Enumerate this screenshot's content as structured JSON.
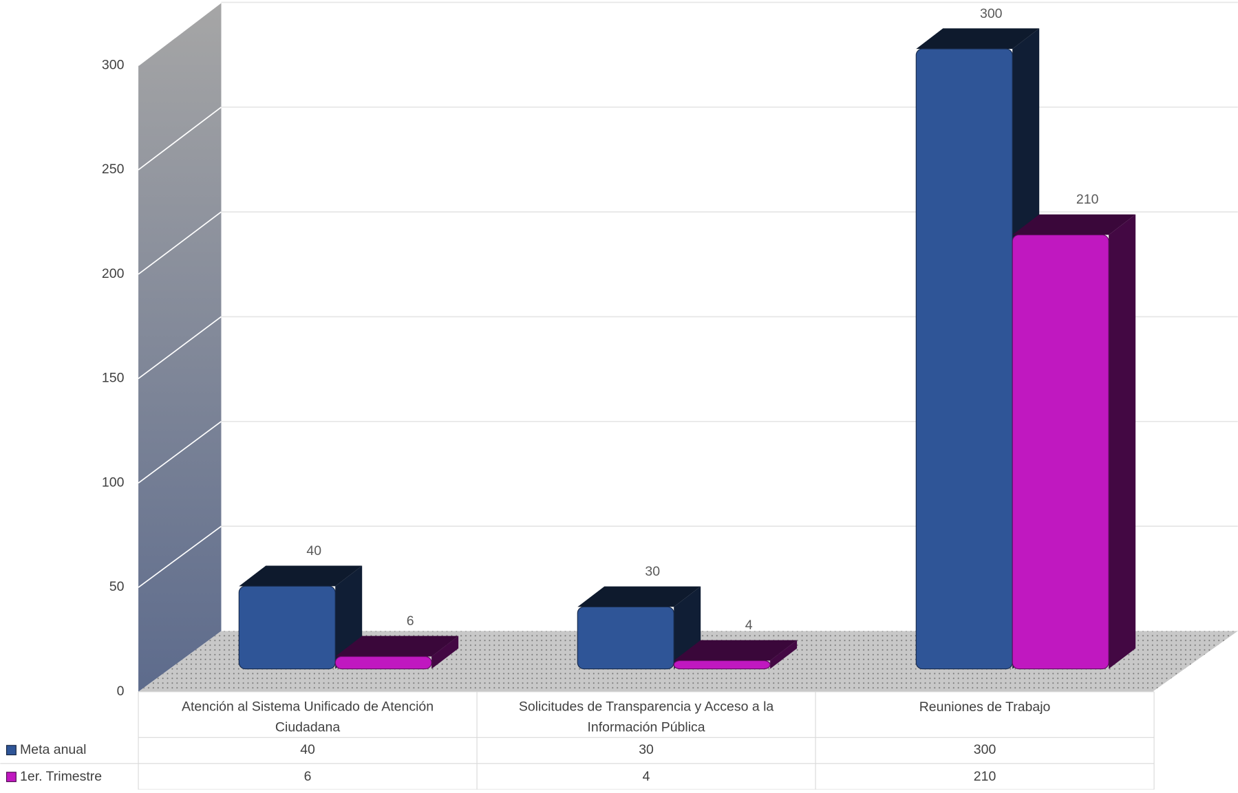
{
  "chart_data": {
    "type": "bar3d",
    "categories": [
      "Atención al Sistema Unificado de Atención Ciudadana",
      "Solicitudes de Transparencia y Acceso a la Información Pública",
      "Reuniones de Trabajo"
    ],
    "series": [
      {
        "name": "Meta anual",
        "color": "#2f5597",
        "values": [
          40,
          30,
          300
        ]
      },
      {
        "name": "1er. Trimestre",
        "color": "#c018c0",
        "values": [
          6,
          4,
          210
        ]
      }
    ],
    "ylim": [
      0,
      300
    ],
    "yticks": [
      0,
      50,
      100,
      150,
      200,
      250,
      300
    ],
    "grid": true,
    "data_table": true
  }
}
